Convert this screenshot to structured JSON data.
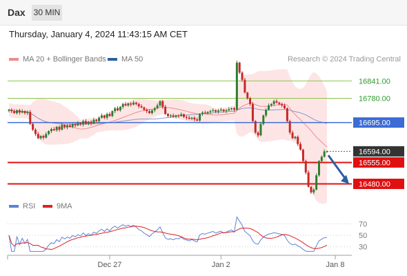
{
  "header": {
    "symbol": "Dax",
    "interval": "30 MIN"
  },
  "datetime": "Thursday, January 4, 2024 11:43:15 AM CET",
  "credit": "Research © 2024 Trading Central",
  "legend_main": [
    {
      "label": "MA 20 + Bollinger Bands",
      "color": "#f08a8a"
    },
    {
      "label": "MA 50",
      "color": "#2f5f9f"
    }
  ],
  "legend_rsi": [
    {
      "label": "RSI",
      "color": "#5b82d6"
    },
    {
      "label": "9MA",
      "color": "#e02020"
    }
  ],
  "colors": {
    "up": "#2e7d32",
    "down": "#c62828",
    "resistance": "#8bc34a",
    "support": "#e01010",
    "ma50": "#3b6cd6",
    "current": "#333333"
  },
  "chart_data": [
    {
      "type": "candlestick",
      "x_ticks": [
        "Dec 27",
        "Jan 2",
        "Jan 8"
      ],
      "ylim": [
        16440,
        16890
      ],
      "levels": [
        {
          "label": "16841.00",
          "value": 16841,
          "kind": "resistance"
        },
        {
          "label": "16780.00",
          "value": 16780,
          "kind": "resistance"
        },
        {
          "label": "16695.00",
          "value": 16695,
          "kind": "ma50"
        },
        {
          "label": "16594.00",
          "value": 16594,
          "kind": "current"
        },
        {
          "label": "16555.00",
          "value": 16555,
          "kind": "support"
        },
        {
          "label": "16480.00",
          "value": 16480,
          "kind": "support"
        }
      ],
      "close": [
        16740,
        16735,
        16728,
        16738,
        16730,
        16735,
        16728,
        16732,
        16690,
        16670,
        16655,
        16640,
        16648,
        16642,
        16655,
        16665,
        16672,
        16668,
        16680,
        16670,
        16686,
        16678,
        16685,
        16680,
        16690,
        16685,
        16693,
        16688,
        16700,
        16690,
        16698,
        16692,
        16705,
        16700,
        16712,
        16720,
        16712,
        16725,
        16718,
        16735,
        16745,
        16738,
        16750,
        16760,
        16755,
        16762,
        16758,
        16765,
        16760,
        16752,
        16748,
        16740,
        16735,
        16728,
        16738,
        16745,
        16755,
        16770,
        16750,
        16725,
        16718,
        16720,
        16715,
        16720,
        16718,
        16724,
        16715,
        16712,
        16708,
        16712,
        16706,
        16702,
        16725,
        16730,
        16728,
        16732,
        16735,
        16738,
        16733,
        16737,
        16740,
        16735,
        16738,
        16742,
        16745,
        16740,
        16905,
        16870,
        16845,
        16800,
        16780,
        16760,
        16700,
        16660,
        16650,
        16690,
        16720,
        16740,
        16755,
        16760,
        16770,
        16765,
        16760,
        16755,
        16745,
        16700,
        16660,
        16640,
        16645,
        16620,
        16600,
        16560,
        16520,
        16470,
        16450,
        16460,
        16510,
        16560,
        16575,
        16594,
        16594
      ],
      "rsi": {
        "ylim": [
          20,
          85
        ],
        "ticks": [
          {
            "label": "70",
            "value": 70
          },
          {
            "label": "50",
            "value": 50
          },
          {
            "label": "30",
            "value": 30
          }
        ]
      },
      "projection": {
        "from": 16580,
        "to": 16480
      }
    }
  ]
}
